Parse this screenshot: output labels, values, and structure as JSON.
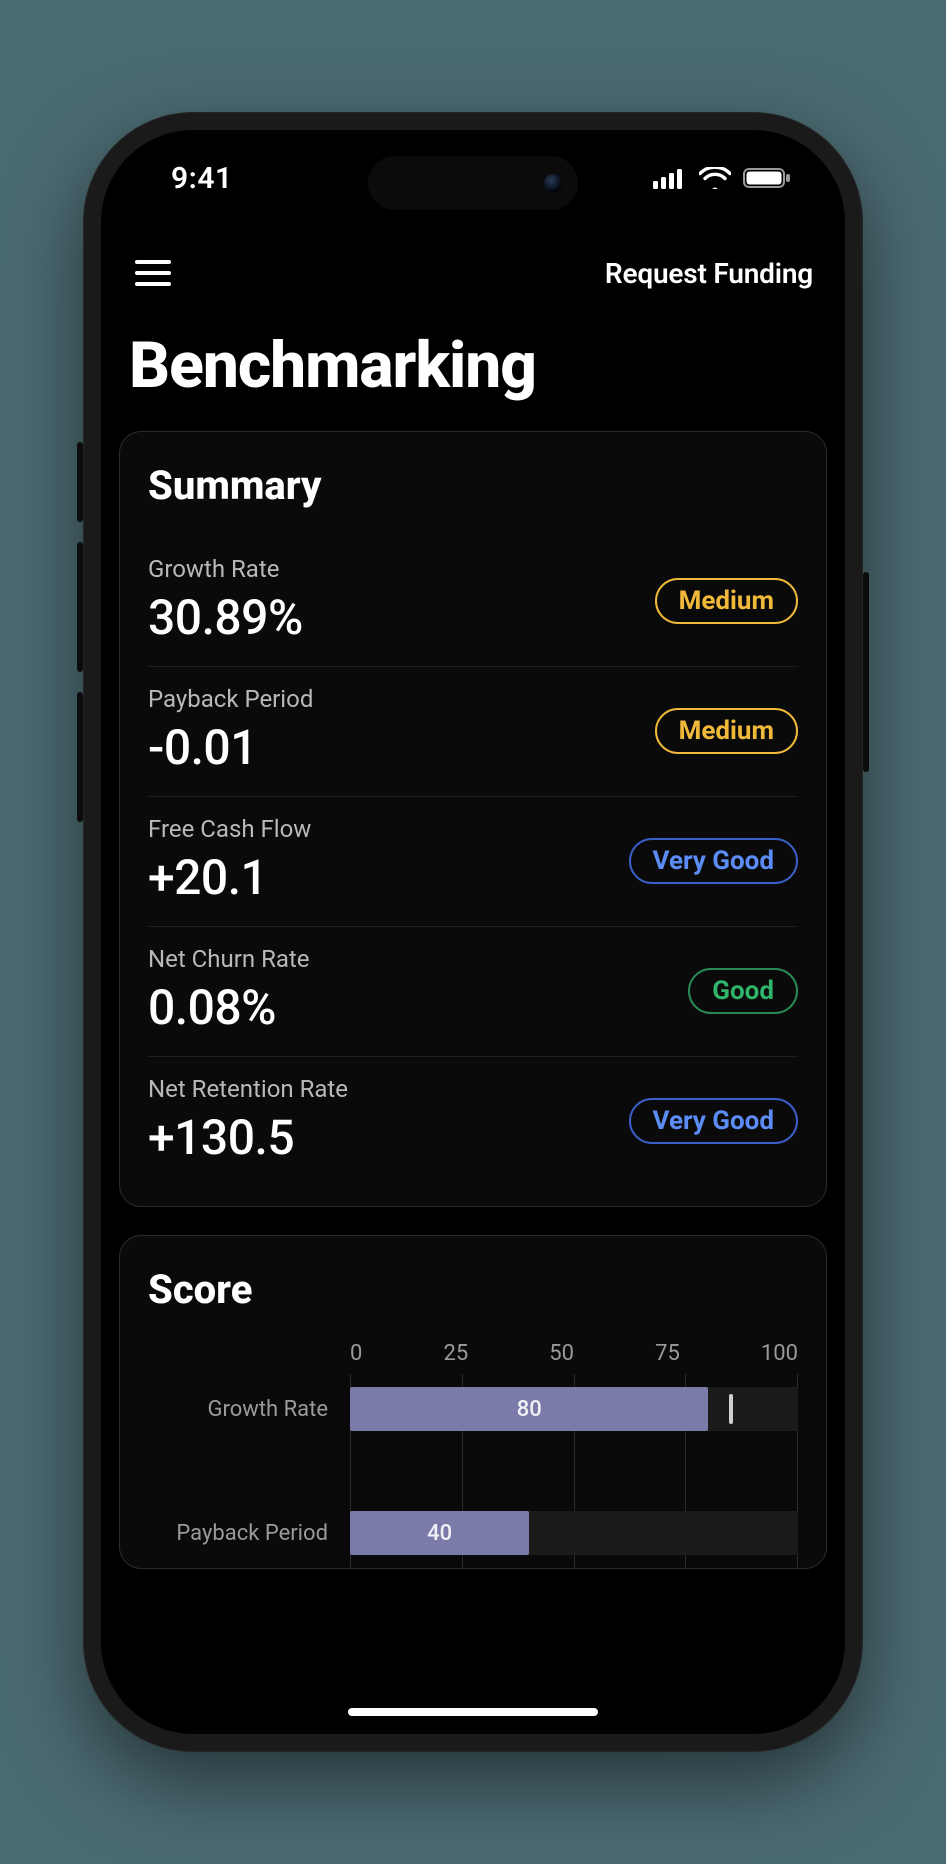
{
  "status_bar": {
    "time": "9:41"
  },
  "topbar": {
    "request_funding": "Request Funding"
  },
  "page_title": "Benchmarking",
  "badge_styles": {
    "medium": {
      "text_color": "#f0b93a",
      "border_color": "#f0b93a"
    },
    "very_good": {
      "text_color": "#5c8df6",
      "border_color": "#3a5fc9"
    },
    "good": {
      "text_color": "#2fb46a",
      "border_color": "#2a8a53"
    }
  },
  "summary": {
    "title": "Summary",
    "metrics": [
      {
        "label": "Growth Rate",
        "value": "30.89%",
        "badge_text": "Medium",
        "badge_style": "medium"
      },
      {
        "label": "Payback Period",
        "value": "-0.01",
        "badge_text": "Medium",
        "badge_style": "medium"
      },
      {
        "label": "Free Cash Flow",
        "value": "+20.1",
        "badge_text": "Very Good",
        "badge_style": "very_good"
      },
      {
        "label": "Net Churn Rate",
        "value": "0.08%",
        "badge_text": "Good",
        "badge_style": "good"
      },
      {
        "label": "Net Retention Rate",
        "value": "+130.5",
        "badge_text": "Very Good",
        "badge_style": "very_good"
      }
    ]
  },
  "score": {
    "title": "Score",
    "axis": {
      "min": 0,
      "max": 100,
      "ticks": [
        0,
        25,
        50,
        75,
        100
      ]
    },
    "bar_color": "#7a7ba8",
    "bar_text_color": "#f0f0f6",
    "track_bg": "#1b1b1b",
    "grid_color": "#2b2b2b",
    "rows": [
      {
        "label": "Growth Rate",
        "value": 80,
        "tick_at": 85
      },
      {
        "label": "Payback Period",
        "value": 40
      }
    ]
  },
  "colors": {
    "page_bg": "#4b6b72",
    "phone_body": "#1a1a1a",
    "screen_bg": "#000000",
    "text_primary": "#ffffff",
    "text_secondary": "#b9b9b9",
    "card_border": "#2b2b2b",
    "card_bg": "#0a0a0a"
  }
}
